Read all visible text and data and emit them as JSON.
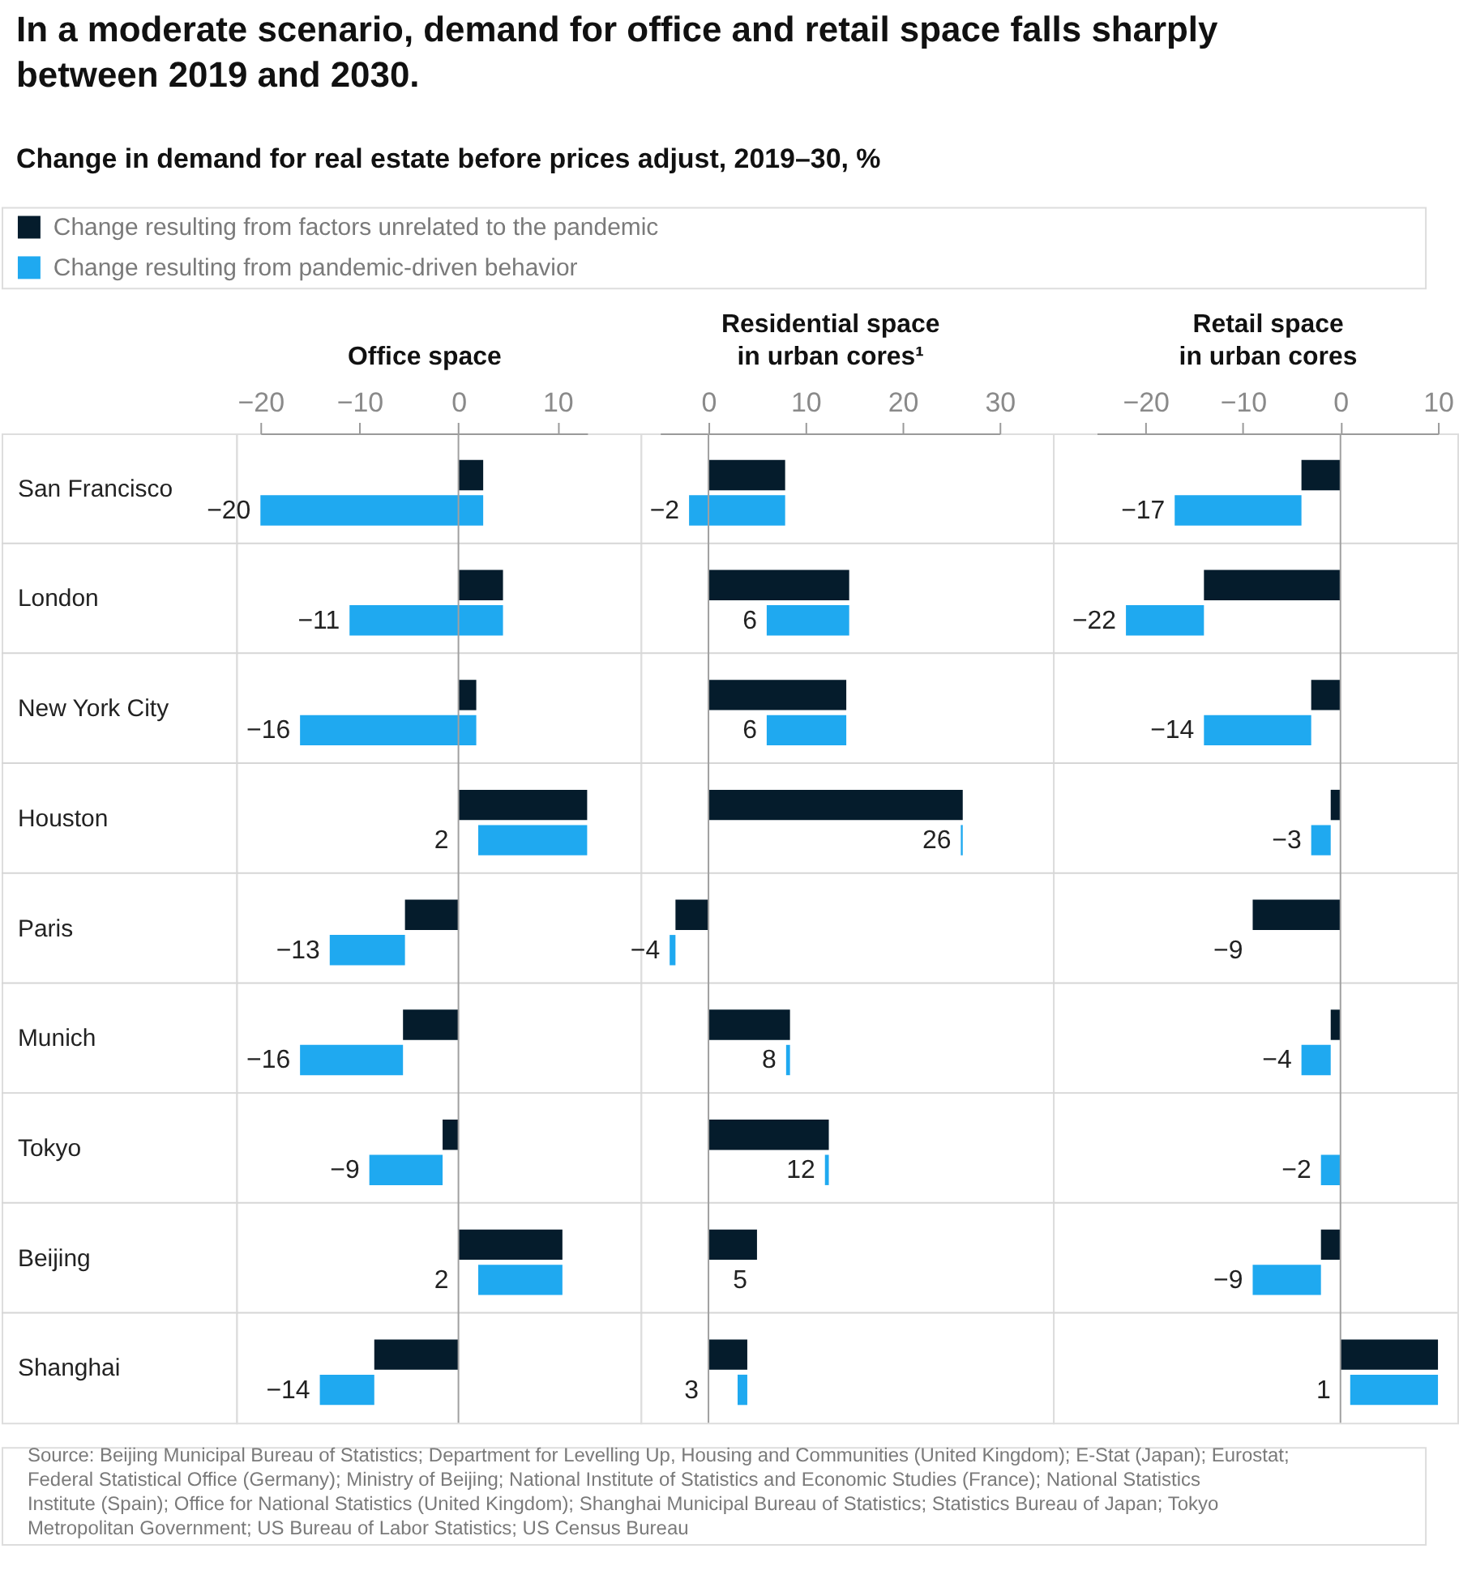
{
  "chart_data": [
    {
      "type": "bar",
      "orientation": "horizontal",
      "title": "In a moderate scenario, demand for office and retail space falls sharply between 2019 and 2030.",
      "subtitle": "Change in demand for real estate before prices adjust, 2019–30, %",
      "xlabel": "Office space",
      "categories": [
        "San Francisco",
        "London",
        "New York City",
        "Houston",
        "Paris",
        "Munich",
        "Tokyo",
        "Beijing",
        "Shanghai"
      ],
      "series": [
        {
          "name": "Change resulting from factors unrelated to the pandemic",
          "color": "#051c2c",
          "values": [
            2.5,
            4.5,
            1.8,
            13.0,
            -5.4,
            -5.6,
            -1.6,
            10.5,
            -8.5
          ]
        },
        {
          "name": "Change resulting from pandemic-driven behavior",
          "color": "#1fa9f0",
          "values": [
            -22.5,
            -15.5,
            -17.8,
            -11.0,
            -7.6,
            -10.4,
            -7.4,
            -8.5,
            -5.5
          ],
          "base": [
            2.5,
            4.5,
            1.8,
            13.0,
            -5.4,
            -5.6,
            -1.6,
            10.5,
            -8.5
          ],
          "value_labels": [
            "−20",
            "−11",
            "−16",
            "2",
            "−13",
            "−16",
            "−9",
            "2",
            "−14"
          ]
        }
      ],
      "xlim": [
        -20,
        13
      ],
      "xticks": [
        -20,
        -10,
        0,
        10
      ],
      "grid": "y",
      "legend": "top left",
      "ref_lines": [
        {
          "axis": "x",
          "value": 0,
          "color": "#a0a0a0"
        }
      ],
      "annotations": [
        "Source: Beijing Municipal Bureau of Statistics; Department for Levelling Up, Housing and Communities (United Kingdom); E-Stat (Japan); Eurostat; Federal Statistical Office (Germany); Ministry of Beijing; National Institute of Statistics and Economic Studies (France); National Statistics Institute (Spain); Office for National Statistics (United Kingdom); Shanghai Municipal Bureau of Statistics; Statistics Bureau of Japan; Tokyo Metropolitan Government; US Bureau of Labor Statistics; US Census Bureau"
      ]
    },
    {
      "type": "bar",
      "orientation": "horizontal",
      "xlabel": "Residential space in urban cores¹",
      "tick_labels": "x",
      "categories": [
        null,
        null,
        null,
        null,
        null,
        null,
        null,
        null,
        null
      ],
      "series": [
        {
          "color": "#051c2c",
          "values": [
            7.9,
            14.5,
            14.2,
            26.2,
            -3.4,
            8.4,
            12.4,
            5.0,
            4.0
          ]
        },
        {
          "color": "#1fa9f0",
          "values": [
            -9.9,
            -8.5,
            -8.2,
            -0.2,
            -0.6,
            -0.4,
            -0.4,
            null,
            -1.0
          ],
          "base": [
            7.9,
            14.5,
            14.2,
            26.2,
            -3.4,
            8.4,
            12.4,
            null,
            4.0
          ],
          "value_labels": [
            "−2",
            "6",
            "6",
            "26",
            "−4",
            "8",
            "12",
            "5",
            "3"
          ]
        }
      ],
      "xlim": [
        -5,
        30
      ],
      "xticks": [
        0,
        10,
        20,
        30
      ],
      "grid": "y",
      "ref_lines": [
        {
          "axis": "x",
          "value": 0,
          "color": "#a0a0a0"
        }
      ]
    },
    {
      "type": "bar",
      "orientation": "horizontal",
      "xlabel": "Retail space in urban cores",
      "tick_labels": "x",
      "categories": [
        null,
        null,
        null,
        null,
        null,
        null,
        null,
        null,
        null
      ],
      "series": [
        {
          "color": "#051c2c",
          "values": [
            -4.0,
            -14.0,
            -3.0,
            -1.0,
            -9.0,
            -1.0,
            null,
            -2.0,
            10.0
          ]
        },
        {
          "color": "#1fa9f0",
          "values": [
            -13.0,
            -8.0,
            -11.0,
            -2.0,
            null,
            -3.0,
            -2.0,
            -7.0,
            -9.0
          ],
          "base": [
            -4.0,
            -14.0,
            -3.0,
            -1.0,
            null,
            -1.0,
            0,
            -2.0,
            10.0
          ],
          "value_labels": [
            "−17",
            "−22",
            "−14",
            "−3",
            "−9",
            "−4",
            "−2",
            "−9",
            "1"
          ]
        }
      ],
      "xlim": [
        -25,
        10
      ],
      "xticks": [
        -20,
        -10,
        0,
        10
      ],
      "grid": "y",
      "ref_lines": [
        {
          "axis": "x",
          "value": 0,
          "color": "#a0a0a0"
        }
      ]
    }
  ]
}
